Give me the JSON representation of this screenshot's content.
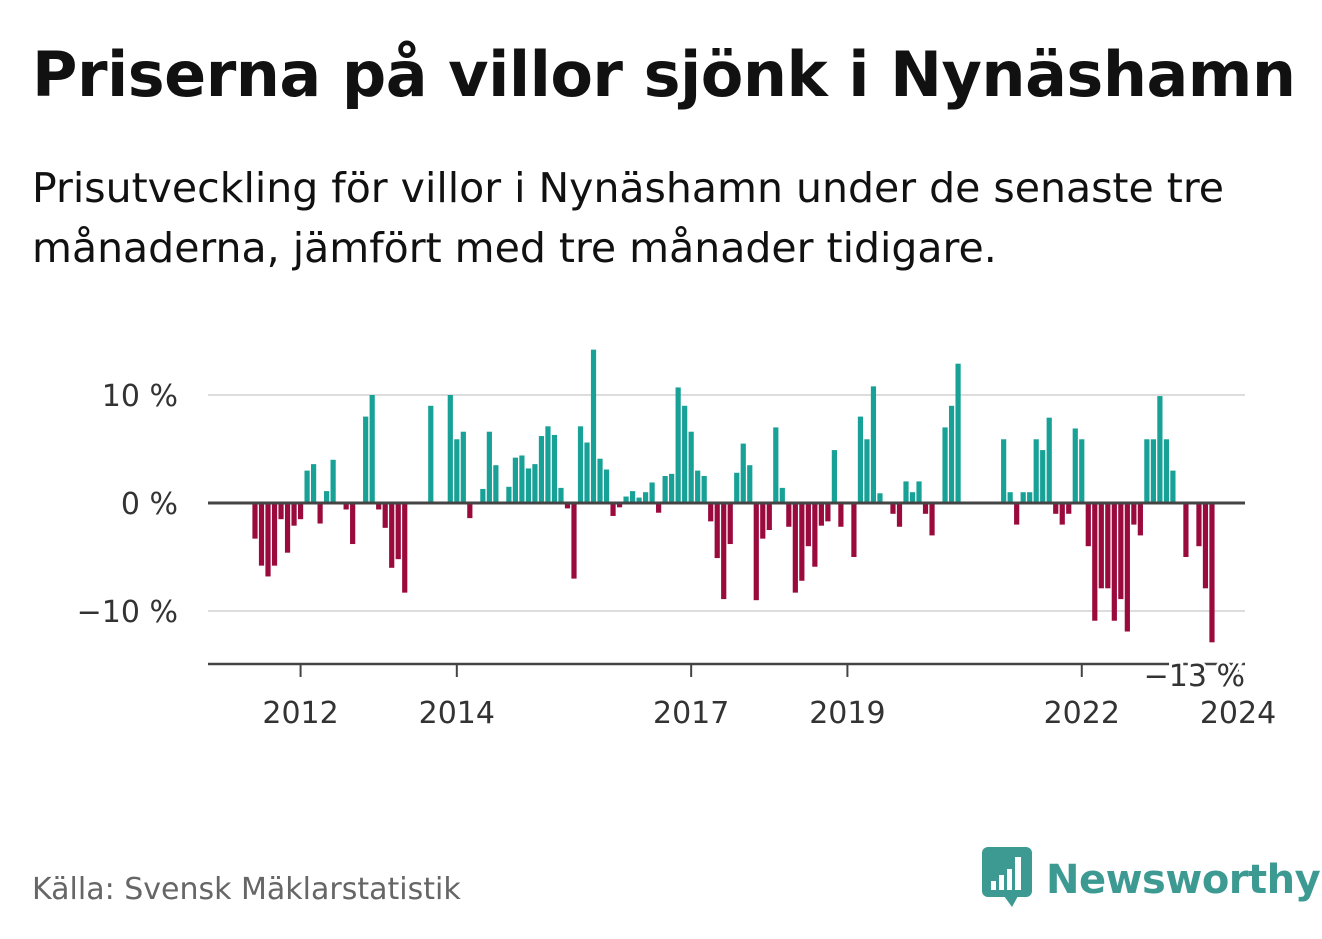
{
  "title": "Priserna på villor sjönk i Nynäshamn",
  "subtitle": "Prisutveckling för villor i Nynäshamn under de senaste tre månaderna, jämfört med tre månader tidigare.",
  "source": "Källa: Svensk Mäklarstatistik",
  "brand": {
    "name": "Newsworthy",
    "logo_icon": "bar-chart-speech-bubble-icon"
  },
  "colors": {
    "positive": "#18a197",
    "negative": "#9b0a3c",
    "grid": "#dddddd",
    "axis": "#444444",
    "brand": "#3d9a93"
  },
  "chart_data": {
    "type": "bar",
    "title": "Priserna på villor sjönk i Nynäshamn",
    "xlabel": "",
    "ylabel": "",
    "ylim": [
      -15,
      15
    ],
    "yticks": [
      {
        "value": 10,
        "label": "10 %"
      },
      {
        "value": 0,
        "label": "0 %"
      },
      {
        "value": -10,
        "label": "−10 %"
      }
    ],
    "xticks": [
      {
        "index": 7,
        "label": "2012"
      },
      {
        "index": 31,
        "label": "2014"
      },
      {
        "index": 67,
        "label": "2017"
      },
      {
        "index": 91,
        "label": "2019"
      },
      {
        "index": 127,
        "label": "2022"
      },
      {
        "index": 151,
        "label": "2024"
      }
    ],
    "grid": true,
    "last_value_label": "−13 %",
    "values": [
      -3.3,
      -5.8,
      -6.8,
      -5.8,
      -1.5,
      -4.6,
      -2.1,
      -1.5,
      3.0,
      3.6,
      -1.9,
      1.1,
      4.0,
      0,
      -0.6,
      -3.8,
      0,
      8.0,
      10.0,
      -0.6,
      -2.3,
      -6.0,
      -5.2,
      -8.3,
      0,
      0,
      0,
      9.0,
      0,
      0,
      10.0,
      5.9,
      6.6,
      -1.4,
      0,
      1.3,
      6.6,
      3.5,
      0,
      1.5,
      4.2,
      4.4,
      3.2,
      3.6,
      6.2,
      7.1,
      6.3,
      1.4,
      -0.5,
      -7.0,
      7.1,
      5.6,
      14.2,
      4.1,
      3.1,
      -1.2,
      -0.4,
      0.6,
      1.1,
      0.5,
      1.0,
      1.9,
      -0.9,
      2.5,
      2.7,
      10.7,
      9.0,
      6.6,
      3.0,
      2.5,
      -1.7,
      -5.1,
      -8.9,
      -3.8,
      2.8,
      5.5,
      3.5,
      -9.0,
      -3.3,
      -2.5,
      7.0,
      1.4,
      -2.2,
      -8.3,
      -7.2,
      -4.0,
      -5.9,
      -2.1,
      -1.7,
      4.9,
      -2.2,
      0,
      -5.0,
      8.0,
      5.9,
      10.8,
      0.9,
      0,
      -1.0,
      -2.2,
      2.0,
      1.0,
      2.0,
      -1.0,
      -3.0,
      0,
      7.0,
      9.0,
      12.9,
      0,
      0,
      0,
      0,
      0,
      0,
      5.9,
      1.0,
      -2.0,
      1.0,
      1.0,
      5.9,
      4.9,
      7.9,
      -1.0,
      -2.0,
      -1.0,
      6.9,
      5.9,
      -4.0,
      -10.9,
      -7.9,
      -7.9,
      -10.9,
      -8.9,
      -11.9,
      -2.0,
      -3.0,
      5.9,
      5.9,
      9.9,
      5.9,
      3.0,
      0,
      -5.0,
      0,
      -4.0,
      -7.9,
      -12.9
    ]
  }
}
